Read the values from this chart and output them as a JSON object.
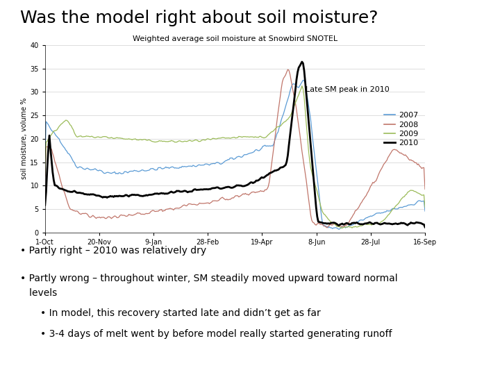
{
  "title": "Was the model right about soil moisture?",
  "chart_title": "Weighted average soil moisture at Snowbird SNOTEL",
  "ylabel": "soil moisture, volume %",
  "yticks": [
    0,
    5,
    10,
    15,
    20,
    25,
    30,
    35,
    40
  ],
  "xtick_labels": [
    "1-Oct",
    "20-Nov",
    "9-Jan",
    "28-Feb",
    "19-Apr",
    "8-Jun",
    "28-Jul",
    "16-Sep"
  ],
  "annotation": "Late SM peak in 2010",
  "colors": {
    "2007": "#5B9BD5",
    "2008": "#C0756A",
    "2009": "#9BBB59",
    "2010": "#000000"
  },
  "bullet1": "Partly right – 2010 was relatively dry",
  "bullet2": "Partly wrong – throughout winter, SM steadily moved upward toward normal",
  "bullet2b": "   levels",
  "bullet3": "In model, this recovery started late and didn’t get as far",
  "bullet4": "3-4 days of melt went by before model really started generating runoff",
  "background_color": "#ffffff",
  "title_fontsize": 18,
  "chart_title_fontsize": 8,
  "tick_fontsize": 7,
  "ylabel_fontsize": 7,
  "bullet_fontsize": 10,
  "legend_fontsize": 8,
  "annotation_fontsize": 8
}
